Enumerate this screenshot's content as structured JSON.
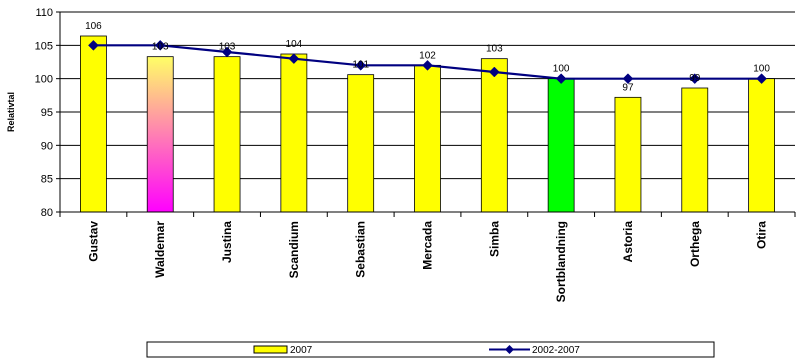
{
  "chart_data": {
    "type": "bar",
    "title": "",
    "xlabel": "",
    "ylabel": "Relativtal",
    "ylim": [
      80,
      110
    ],
    "yticks": [
      80,
      85,
      90,
      95,
      100,
      105,
      110
    ],
    "grid": true,
    "legend_position": "bottom",
    "categories": [
      "Gustav",
      "Waldemar",
      "Justina",
      "Scandium",
      "Sebastian",
      "Mercada",
      "Simba",
      "Sortblandning",
      "Astoria",
      "Orthega",
      "Otira"
    ],
    "series": [
      {
        "name": "2007",
        "type": "bar",
        "values": [
          106.4,
          103.3,
          103.3,
          103.7,
          100.6,
          102,
          103,
          100,
          97.2,
          98.6,
          100
        ],
        "labels": [
          "106",
          "103",
          "103",
          "104",
          "101",
          "102",
          "103",
          "100",
          "97",
          "99",
          "100"
        ],
        "color": "#ffff00",
        "highlight_colors": {
          "Waldemar": [
            "#ffff66",
            "#ff00ff"
          ],
          "Sortblandning": "#00ff00"
        }
      },
      {
        "name": "2002-2007",
        "type": "line",
        "values": [
          105,
          105,
          104,
          103,
          102,
          102,
          101,
          100,
          100,
          100,
          100
        ],
        "color": "#000080",
        "marker": "diamond"
      }
    ]
  }
}
